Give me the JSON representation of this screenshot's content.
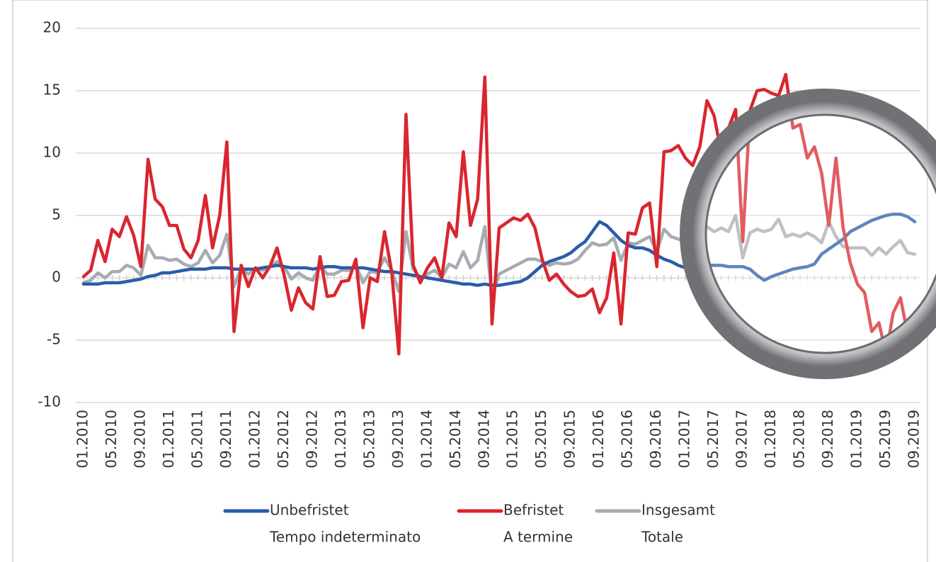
{
  "chart_data": {
    "type": "line",
    "categories": [
      "01.2010",
      null,
      null,
      null,
      "05.2010",
      null,
      null,
      null,
      "09.2010",
      null,
      null,
      null,
      "01.2011",
      null,
      null,
      null,
      "05.2011",
      null,
      null,
      null,
      "09.2011",
      null,
      null,
      null,
      "01.2012",
      null,
      null,
      null,
      "05.2012",
      null,
      null,
      null,
      "09.2012",
      null,
      null,
      null,
      "01.2013",
      null,
      null,
      null,
      "05.2013",
      null,
      null,
      null,
      "09.2013",
      null,
      null,
      null,
      "01.2014",
      null,
      null,
      null,
      "05.2014",
      null,
      null,
      null,
      "09.2014",
      null,
      null,
      null,
      "01.2015",
      null,
      null,
      null,
      "05.2015",
      null,
      null,
      null,
      "09.2015",
      null,
      null,
      null,
      "01.2016",
      null,
      null,
      null,
      "05.2016",
      null,
      null,
      null,
      "09.2016",
      null,
      null,
      null,
      "01.2017",
      null,
      null,
      null,
      "05.2017",
      null,
      null,
      null,
      "09.2017",
      null,
      null,
      null,
      "01.2018",
      null,
      null,
      null,
      "05.2018",
      null,
      null,
      null,
      "09.2018",
      null,
      null,
      null,
      "01.2019",
      null,
      null,
      null,
      "05.2019",
      null,
      null,
      null,
      "09.2019"
    ],
    "series": [
      {
        "name": "Unbefristet",
        "name_it": "Tempo indeterminato",
        "color": "#2a5caa",
        "values": [
          -0.5,
          -0.5,
          -0.5,
          -0.4,
          -0.4,
          -0.4,
          -0.3,
          -0.2,
          -0.1,
          0.1,
          0.2,
          0.4,
          0.4,
          0.5,
          0.6,
          0.7,
          0.7,
          0.7,
          0.8,
          0.8,
          0.8,
          0.7,
          0.7,
          0.7,
          0.7,
          0.8,
          0.9,
          1.0,
          0.9,
          0.8,
          0.8,
          0.8,
          0.7,
          0.8,
          0.9,
          0.9,
          0.8,
          0.8,
          0.8,
          0.8,
          0.7,
          0.6,
          0.5,
          0.5,
          0.4,
          0.3,
          0.2,
          0.1,
          0.0,
          -0.1,
          -0.2,
          -0.3,
          -0.4,
          -0.5,
          -0.5,
          -0.6,
          -0.5,
          -0.6,
          -0.6,
          -0.5,
          -0.4,
          -0.3,
          0.0,
          0.5,
          1.0,
          1.3,
          1.5,
          1.7,
          2.0,
          2.5,
          2.9,
          3.7,
          4.5,
          4.2,
          3.6,
          3.0,
          2.6,
          2.4,
          2.4,
          2.2,
          1.8,
          1.5,
          1.3,
          1.0,
          0.8,
          0.8,
          0.9,
          1.0,
          1.0,
          1.0,
          0.9,
          0.9,
          0.9,
          0.7,
          0.2,
          -0.2,
          0.1,
          0.3,
          0.5,
          0.7,
          0.8,
          0.9,
          1.1,
          1.9,
          2.3,
          2.7,
          3.1,
          3.7,
          4.0,
          4.3,
          4.6,
          4.8,
          5.0,
          5.1,
          5.1,
          4.9,
          4.5
        ]
      },
      {
        "name": "Befristet",
        "name_it": "A termine",
        "color": "#d9262e",
        "values": [
          0.1,
          0.6,
          3.0,
          1.3,
          3.9,
          3.3,
          4.9,
          3.4,
          0.9,
          9.5,
          6.3,
          5.7,
          4.2,
          4.2,
          2.3,
          1.6,
          3.0,
          6.6,
          2.4,
          5.0,
          10.9,
          -4.3,
          1.0,
          -0.7,
          0.8,
          0.0,
          0.9,
          2.4,
          0.2,
          -2.6,
          -0.8,
          -2.0,
          -2.5,
          1.7,
          -1.5,
          -1.4,
          -0.3,
          -0.2,
          1.5,
          -4.0,
          0.0,
          -0.3,
          3.7,
          0.5,
          -6.1,
          13.1,
          1.0,
          -0.4,
          0.8,
          1.6,
          0.0,
          4.4,
          3.3,
          10.1,
          4.2,
          6.3,
          16.1,
          -3.7,
          4.0,
          4.4,
          4.8,
          4.6,
          5.1,
          4.0,
          1.5,
          -0.2,
          0.3,
          -0.5,
          -1.1,
          -1.5,
          -1.4,
          -0.9,
          -2.8,
          -1.6,
          2.0,
          -3.7,
          3.6,
          3.5,
          5.6,
          6.0,
          0.9,
          10.1,
          10.2,
          10.6,
          9.6,
          9.0,
          10.5,
          14.2,
          13.0,
          10.0,
          12.0,
          13.5,
          2.9,
          13.4,
          15.0,
          15.1,
          14.8,
          14.6,
          16.3,
          12.0,
          12.3,
          9.6,
          10.5,
          8.4,
          4.2,
          9.6,
          4.0,
          1.2,
          -0.5,
          -1.2,
          -4.3,
          -3.6,
          -6.1,
          -2.8,
          -1.6,
          -4.5,
          -3.4
        ]
      },
      {
        "name": "Insgesamt",
        "name_it": "Totale",
        "color": "#a7abb2",
        "values": [
          -0.4,
          -0.2,
          0.4,
          0.0,
          0.5,
          0.5,
          1.0,
          0.8,
          0.2,
          2.6,
          1.6,
          1.6,
          1.4,
          1.5,
          1.1,
          0.9,
          1.2,
          2.2,
          1.2,
          1.8,
          3.5,
          -0.7,
          0.8,
          0.3,
          0.8,
          0.6,
          0.9,
          1.3,
          0.9,
          -0.1,
          0.4,
          0.0,
          -0.2,
          1.0,
          0.3,
          0.3,
          0.6,
          0.6,
          1.0,
          -0.4,
          0.5,
          0.4,
          1.6,
          0.6,
          -1.1,
          3.7,
          0.7,
          0.0,
          0.3,
          0.6,
          0.0,
          1.1,
          0.8,
          2.1,
          0.8,
          1.4,
          4.1,
          -1.5,
          0.3,
          0.6,
          0.9,
          1.2,
          1.5,
          1.5,
          1.3,
          1.0,
          1.2,
          1.1,
          1.2,
          1.5,
          2.2,
          2.8,
          2.6,
          2.7,
          3.2,
          1.4,
          2.8,
          2.7,
          3.0,
          3.3,
          2.1,
          3.9,
          3.3,
          3.1,
          2.9,
          3.4,
          3.0,
          4.1,
          3.7,
          4.0,
          3.7,
          5.0,
          1.6,
          3.6,
          3.9,
          3.7,
          3.9,
          4.7,
          3.3,
          3.5,
          3.3,
          3.6,
          3.3,
          2.8,
          4.5,
          3.3,
          2.5,
          2.4,
          2.4,
          2.4,
          1.8,
          2.4,
          1.9,
          2.5,
          3.0,
          2.0,
          1.9
        ]
      }
    ],
    "ylim": [
      -10,
      20
    ],
    "yticks": [
      -10,
      -5,
      0,
      5,
      10,
      15,
      20
    ],
    "grid": true
  }
}
